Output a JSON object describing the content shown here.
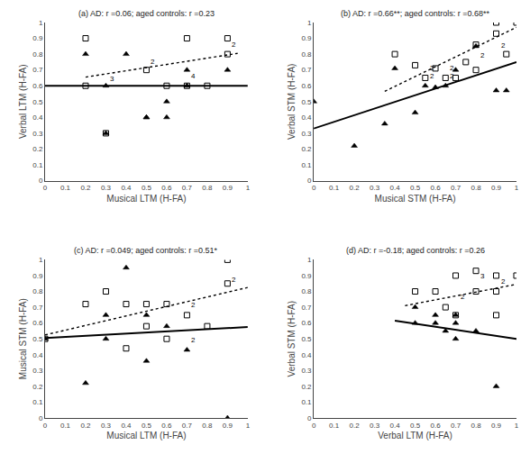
{
  "chart_data": [
    {
      "type": "scatter",
      "title": "(a) AD: r =0.06; aged controls: r =0.23",
      "xlabel": "Musical LTM (H-FA)",
      "ylabel": "Verbal LTM (H-FA)",
      "xlim": [
        0,
        1
      ],
      "ylim": [
        0,
        1
      ],
      "xticks": [
        0,
        0.1,
        0.2,
        0.3,
        0.4,
        0.5,
        0.6,
        0.7,
        0.8,
        0.9,
        1
      ],
      "yticks": [
        0,
        0.1,
        0.2,
        0.3,
        0.4,
        0.5,
        0.6,
        0.7,
        0.8,
        0.9,
        1
      ],
      "grid": false,
      "series": [
        {
          "type": "scatter",
          "marker": "square-open",
          "color": "black",
          "x": [
            0.2,
            0.2,
            0.3,
            0.5,
            0.6,
            0.7,
            0.7,
            0.8,
            0.9,
            0.9
          ],
          "values": [
            0.9,
            0.6,
            0.3,
            0.7,
            0.6,
            0.9,
            0.6,
            0.6,
            0.9,
            0.8
          ]
        },
        {
          "type": "scatter",
          "marker": "triangle-up",
          "color": "black",
          "x": [
            0.2,
            0.3,
            0.3,
            0.4,
            0.5,
            0.5,
            0.6,
            0.6,
            0.7,
            0.7,
            0.9
          ],
          "values": [
            0.8,
            0.3,
            0.6,
            0.8,
            0.4,
            0.4,
            0.5,
            0.4,
            0.7,
            0.6,
            0.7
          ]
        },
        {
          "type": "line",
          "line_style": "solid",
          "color": "black",
          "x": [
            0.0,
            1.0
          ],
          "values": [
            0.6,
            0.6
          ]
        },
        {
          "type": "line",
          "line_style": "dotted",
          "color": "black",
          "x": [
            0.2,
            0.95
          ],
          "values": [
            0.655,
            0.805
          ]
        }
      ],
      "annotations": [
        {
          "x": 0.5,
          "y": 0.715,
          "text": "2"
        },
        {
          "x": 0.7,
          "y": 0.625,
          "text": "4"
        },
        {
          "x": 0.9,
          "y": 0.825,
          "text": "2"
        },
        {
          "x": 0.3,
          "y": 0.605,
          "text": "3"
        }
      ]
    },
    {
      "type": "scatter",
      "title": "(b) AD: r =0.66**; aged controls: r =0.68**",
      "xlabel": "Musical STM (H-FA)",
      "ylabel": "Verbal STM (H-FA)",
      "xlim": [
        0,
        1
      ],
      "ylim": [
        0,
        1
      ],
      "xticks": [
        0,
        0.1,
        0.2,
        0.3,
        0.4,
        0.5,
        0.6,
        0.7,
        0.8,
        0.9,
        1
      ],
      "yticks": [
        0,
        0.1,
        0.2,
        0.3,
        0.4,
        0.5,
        0.6,
        0.7,
        0.8,
        0.9,
        1
      ],
      "grid": false,
      "series": [
        {
          "type": "scatter",
          "marker": "square-open",
          "color": "black",
          "x": [
            0.4,
            0.5,
            0.55,
            0.6,
            0.65,
            0.7,
            0.75,
            0.8,
            0.8,
            0.9,
            0.9,
            0.95,
            1.0
          ],
          "values": [
            0.8,
            0.73,
            0.65,
            0.71,
            0.65,
            0.65,
            0.75,
            0.86,
            0.7,
            1.0,
            0.93,
            0.8,
            1.0
          ]
        },
        {
          "type": "scatter",
          "marker": "triangle-up",
          "color": "black",
          "x": [
            0.0,
            0.2,
            0.35,
            0.4,
            0.5,
            0.55,
            0.6,
            0.65,
            0.7,
            0.8,
            0.9,
            0.95
          ],
          "values": [
            0.5,
            0.22,
            0.36,
            0.71,
            0.43,
            0.6,
            0.59,
            0.6,
            0.7,
            0.85,
            0.57,
            0.57
          ]
        },
        {
          "type": "line",
          "line_style": "solid",
          "color": "black",
          "x": [
            0.0,
            1.0
          ],
          "values": [
            0.33,
            0.75
          ]
        },
        {
          "type": "line",
          "line_style": "dotted",
          "color": "black",
          "x": [
            0.35,
            1.0
          ],
          "values": [
            0.565,
            0.97
          ]
        }
      ],
      "annotations": [
        {
          "x": 0.55,
          "y": 0.675,
          "text": "2"
        },
        {
          "x": 0.65,
          "y": 0.675,
          "text": "2"
        },
        {
          "x": 0.8,
          "y": 0.755,
          "text": "2"
        },
        {
          "x": 0.9,
          "y": 0.815,
          "text": "2"
        },
        {
          "x": 0.55,
          "y": 0.625,
          "text": "2"
        },
        {
          "x": 0.65,
          "y": 0.625,
          "text": "2"
        }
      ]
    },
    {
      "type": "scatter",
      "title": "(c) AD: r =0.049; aged controls: r =0.51*",
      "xlabel": "Musical LTM (H-FA)",
      "ylabel": "Musical STM (H-FA)",
      "xlim": [
        0,
        1
      ],
      "ylim": [
        0,
        1
      ],
      "xticks": [
        0,
        0.1,
        0.2,
        0.3,
        0.4,
        0.5,
        0.6,
        0.7,
        0.8,
        0.9,
        1
      ],
      "yticks": [
        0,
        0.1,
        0.2,
        0.3,
        0.4,
        0.5,
        0.6,
        0.7,
        0.8,
        0.9,
        1
      ],
      "grid": false,
      "series": [
        {
          "type": "scatter",
          "marker": "square-open",
          "color": "black",
          "x": [
            0.0,
            0.2,
            0.3,
            0.4,
            0.4,
            0.5,
            0.5,
            0.6,
            0.6,
            0.7,
            0.8,
            0.9,
            0.9
          ],
          "values": [
            0.5,
            0.72,
            0.8,
            0.44,
            0.72,
            0.72,
            0.58,
            0.72,
            0.5,
            0.65,
            0.58,
            0.85,
            1.0
          ]
        },
        {
          "type": "scatter",
          "marker": "triangle-up",
          "color": "black",
          "x": [
            0.0,
            0.2,
            0.3,
            0.3,
            0.4,
            0.5,
            0.5,
            0.6,
            0.7,
            0.9
          ],
          "values": [
            0.5,
            0.22,
            0.5,
            0.65,
            0.95,
            0.65,
            0.36,
            0.58,
            0.43,
            0.0
          ]
        },
        {
          "type": "line",
          "line_style": "solid",
          "color": "black",
          "x": [
            0.0,
            1.0
          ],
          "values": [
            0.505,
            0.575
          ]
        },
        {
          "type": "line",
          "line_style": "dotted",
          "color": "black",
          "x": [
            0.0,
            1.0
          ],
          "values": [
            0.525,
            0.825
          ]
        }
      ],
      "annotations": [
        {
          "x": 0.7,
          "y": 0.675,
          "text": "2"
        },
        {
          "x": 0.9,
          "y": 0.835,
          "text": "2"
        },
        {
          "x": 0.7,
          "y": 0.455,
          "text": "2"
        }
      ]
    },
    {
      "type": "scatter",
      "title": "(d) AD: r =-0.18; aged controls: r =0.26",
      "xlabel": "Verbal LTM (H-FA)",
      "ylabel": "Verbal STM (H-FA)",
      "xlim": [
        0,
        1
      ],
      "ylim": [
        0,
        1
      ],
      "xticks": [
        0,
        0.1,
        0.2,
        0.3,
        0.4,
        0.5,
        0.6,
        0.7,
        0.8,
        0.9,
        1
      ],
      "yticks": [
        0,
        0.1,
        0.2,
        0.3,
        0.4,
        0.5,
        0.6,
        0.7,
        0.8,
        0.9,
        1
      ],
      "grid": false,
      "series": [
        {
          "type": "scatter",
          "marker": "square-open",
          "color": "black",
          "x": [
            0.5,
            0.6,
            0.65,
            0.7,
            0.7,
            0.8,
            0.8,
            0.9,
            0.9,
            0.9,
            1.0
          ],
          "values": [
            0.8,
            0.8,
            0.7,
            0.9,
            0.65,
            0.93,
            0.8,
            0.9,
            0.8,
            0.65,
            0.9
          ]
        },
        {
          "type": "scatter",
          "marker": "triangle-up",
          "color": "black",
          "x": [
            0.5,
            0.5,
            0.6,
            0.6,
            0.65,
            0.7,
            0.7,
            0.7,
            0.8,
            0.9
          ],
          "values": [
            0.7,
            0.6,
            0.65,
            0.6,
            0.55,
            0.5,
            0.6,
            0.65,
            0.55,
            0.2
          ]
        },
        {
          "type": "line",
          "line_style": "solid",
          "color": "black",
          "x": [
            0.4,
            1.0
          ],
          "values": [
            0.615,
            0.5
          ]
        },
        {
          "type": "line",
          "line_style": "dotted",
          "color": "black",
          "x": [
            0.45,
            1.0
          ],
          "values": [
            0.71,
            0.845
          ]
        }
      ],
      "annotations": [
        {
          "x": 0.7,
          "y": 0.73,
          "text": "2"
        },
        {
          "x": 0.8,
          "y": 0.86,
          "text": "3"
        },
        {
          "x": 0.9,
          "y": 0.825,
          "text": "2"
        }
      ]
    }
  ]
}
